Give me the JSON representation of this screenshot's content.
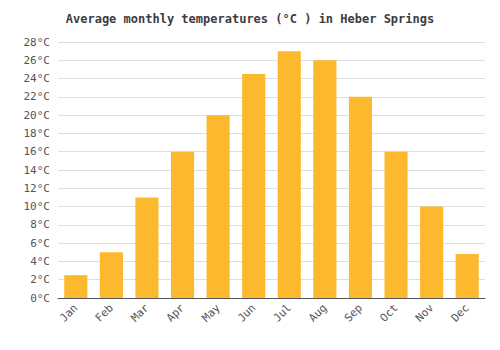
{
  "chart_data": {
    "type": "bar",
    "title": "Average monthly temperatures (°C ) in Heber Springs",
    "categories": [
      "Jan",
      "Feb",
      "Mar",
      "Apr",
      "May",
      "Jun",
      "Jul",
      "Aug",
      "Sep",
      "Oct",
      "Nov",
      "Dec"
    ],
    "values": [
      2.5,
      5.0,
      11.0,
      16.0,
      20.0,
      24.5,
      27.0,
      26.0,
      22.0,
      16.0,
      10.0,
      4.8
    ],
    "color": "#FDB92E",
    "ylim": [
      0,
      28
    ],
    "yticks": [
      {
        "value": 0,
        "label": "0°C"
      },
      {
        "value": 2,
        "label": "2°C"
      },
      {
        "value": 4,
        "label": "4°C"
      },
      {
        "value": 6,
        "label": "6°C"
      },
      {
        "value": 8,
        "label": "8°C"
      },
      {
        "value": 10,
        "label": "10°C"
      },
      {
        "value": 12,
        "label": "12°C"
      },
      {
        "value": 14,
        "label": "14°C"
      },
      {
        "value": 16,
        "label": "16°C"
      },
      {
        "value": 18,
        "label": "18°C"
      },
      {
        "value": 20,
        "label": "20°C"
      },
      {
        "value": 22,
        "label": "22°C"
      },
      {
        "value": 24,
        "label": "24°C"
      },
      {
        "value": 26,
        "label": "26°C"
      },
      {
        "value": 28,
        "label": "28°C"
      }
    ],
    "grid": true
  }
}
